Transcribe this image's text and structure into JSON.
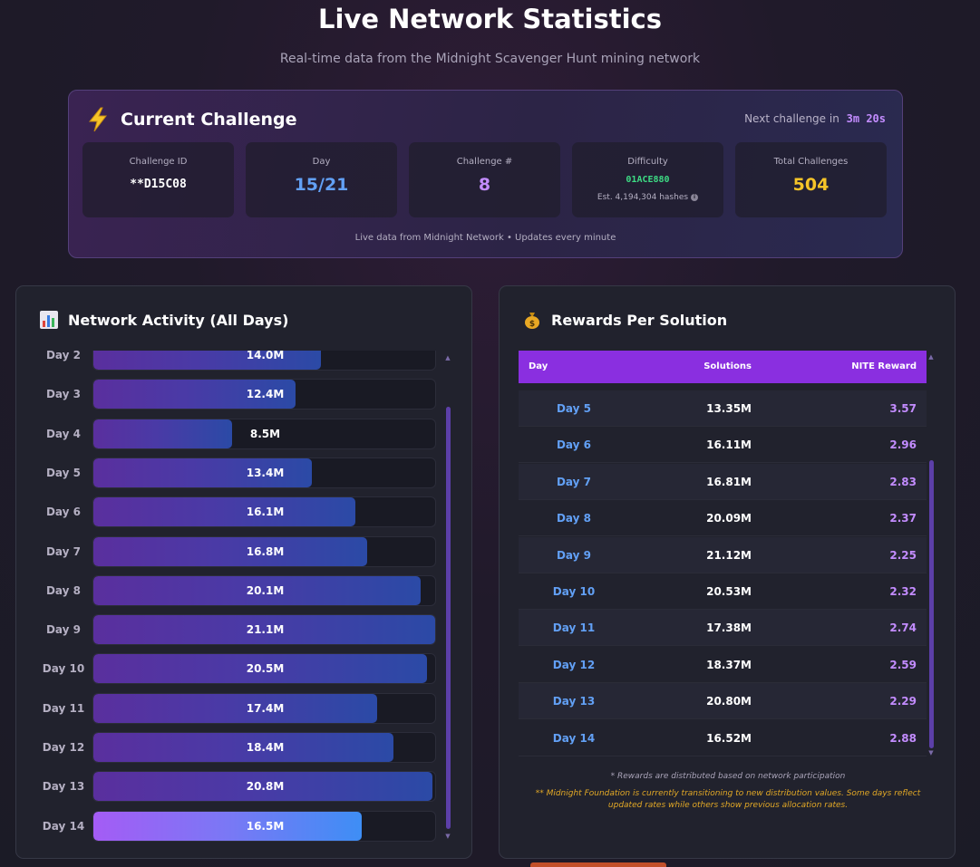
{
  "page": {
    "title": "Live Network Statistics",
    "subtitle": "Real-time data from the Midnight Scavenger Hunt mining network"
  },
  "challenge": {
    "title": "Current Challenge",
    "next_label": "Next challenge in",
    "next_countdown": "3m 20s",
    "tiles": {
      "challenge_id": {
        "label": "Challenge ID",
        "value": "**D15C08"
      },
      "day": {
        "label": "Day",
        "value": "15/21"
      },
      "challenge_num": {
        "label": "Challenge #",
        "value": "8"
      },
      "difficulty": {
        "label": "Difficulty",
        "value": "01ACE880",
        "sub": "Est. 4,194,304 hashes"
      },
      "total": {
        "label": "Total Challenges",
        "value": "504"
      }
    },
    "footer": "Live data from Midnight Network • Updates every minute"
  },
  "activity": {
    "title": "Network Activity (All Days)",
    "max_value": 21.1,
    "bars": [
      {
        "day": "Day 2",
        "value": 14.0,
        "label": "14.0M",
        "active": false
      },
      {
        "day": "Day 3",
        "value": 12.4,
        "label": "12.4M",
        "active": false
      },
      {
        "day": "Day 4",
        "value": 8.5,
        "label": "8.5M",
        "active": false
      },
      {
        "day": "Day 5",
        "value": 13.4,
        "label": "13.4M",
        "active": false
      },
      {
        "day": "Day 6",
        "value": 16.1,
        "label": "16.1M",
        "active": false
      },
      {
        "day": "Day 7",
        "value": 16.8,
        "label": "16.8M",
        "active": false
      },
      {
        "day": "Day 8",
        "value": 20.1,
        "label": "20.1M",
        "active": false
      },
      {
        "day": "Day 9",
        "value": 21.1,
        "label": "21.1M",
        "active": false
      },
      {
        "day": "Day 10",
        "value": 20.5,
        "label": "20.5M",
        "active": false
      },
      {
        "day": "Day 11",
        "value": 17.4,
        "label": "17.4M",
        "active": false
      },
      {
        "day": "Day 12",
        "value": 18.4,
        "label": "18.4M",
        "active": false
      },
      {
        "day": "Day 13",
        "value": 20.8,
        "label": "20.8M",
        "active": false
      },
      {
        "day": "Day 14",
        "value": 16.5,
        "label": "16.5M",
        "active": true
      }
    ]
  },
  "rewards": {
    "title": "Rewards Per Solution",
    "columns": {
      "day": "Day",
      "solutions": "Solutions",
      "nite": "NITE Reward"
    },
    "rows": [
      {
        "day": "Day 5",
        "solutions": "13.35M",
        "nite": "3.57"
      },
      {
        "day": "Day 6",
        "solutions": "16.11M",
        "nite": "2.96"
      },
      {
        "day": "Day 7",
        "solutions": "16.81M",
        "nite": "2.83"
      },
      {
        "day": "Day 8",
        "solutions": "20.09M",
        "nite": "2.37"
      },
      {
        "day": "Day 9",
        "solutions": "21.12M",
        "nite": "2.25"
      },
      {
        "day": "Day 10",
        "solutions": "20.53M",
        "nite": "2.32"
      },
      {
        "day": "Day 11",
        "solutions": "17.38M",
        "nite": "2.74"
      },
      {
        "day": "Day 12",
        "solutions": "18.37M",
        "nite": "2.59"
      },
      {
        "day": "Day 13",
        "solutions": "20.80M",
        "nite": "2.29"
      },
      {
        "day": "Day 14",
        "solutions": "16.52M",
        "nite": "2.88"
      }
    ],
    "note": "* Rewards are distributed based on network participation",
    "warning": "** Midnight Foundation is currently transitioning to new distribution values. Some days reflect updated rates while others show previous allocation rates."
  }
}
